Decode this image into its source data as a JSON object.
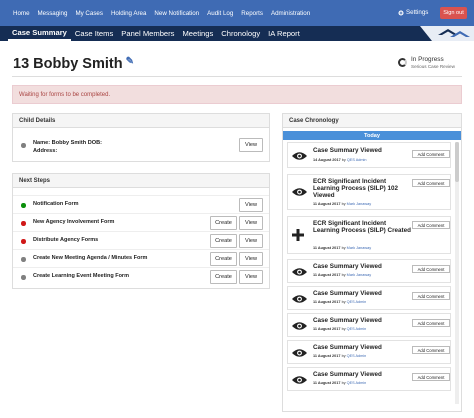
{
  "topnav": {
    "items": [
      "Home",
      "Messaging",
      "My Cases",
      "Holding Area",
      "New Notification",
      "Audit Log",
      "Reports",
      "Administration"
    ],
    "settings": "Settings",
    "signout": "Sign out"
  },
  "subnav": {
    "tabs": [
      "Case Summary",
      "Case Items",
      "Panel Members",
      "Meetings",
      "Chronology",
      "IA Report"
    ],
    "active": "Case Summary"
  },
  "case": {
    "title": "13 Bobby Smith",
    "status_title": "In Progress",
    "status_sub": "Serious Case Review"
  },
  "alert": "Waiting for forms to be completed.",
  "child_details": {
    "heading": "Child Details",
    "name": "Name: Bobby Smith DOB:",
    "address": "Address:",
    "view": "View"
  },
  "next_steps": {
    "heading": "Next Steps",
    "create_label": "Create",
    "view_label": "View",
    "items": [
      {
        "label": "Notification Form",
        "status": "green",
        "create": false
      },
      {
        "label": "New Agency Involvement Form",
        "status": "red",
        "create": true
      },
      {
        "label": "Distribute Agency Forms",
        "status": "red",
        "create": true
      },
      {
        "label": "Create New Meeting Agenda / Minutes Form",
        "status": "gray",
        "create": true
      },
      {
        "label": "Create Learning Event Meeting Form",
        "status": "gray",
        "create": true
      }
    ]
  },
  "chronology": {
    "heading": "Case Chronology",
    "today": "Today",
    "add_comment": "Add Comment",
    "items": [
      {
        "icon": "eye-icon",
        "title": "Case Summary Viewed",
        "date": "14 August 2017",
        "by": "by",
        "who": "QES Admin"
      },
      {
        "icon": "eye-icon",
        "title": "ECR Significant Incident Learning Process (SILP) 102 Viewed",
        "date": "11 August 2017",
        "by": "by",
        "who": "Mark Janaway"
      },
      {
        "icon": "plus-icon",
        "title": "ECR Significant Incident Learning Process (SILP) Created",
        "date": "11 August 2017",
        "by": "by",
        "who": "Mark Janaway"
      },
      {
        "icon": "eye-icon",
        "title": "Case Summary Viewed",
        "date": "11 August 2017",
        "by": "by",
        "who": "Mark Janaway"
      },
      {
        "icon": "eye-icon",
        "title": "Case Summary Viewed",
        "date": "11 August 2017",
        "by": "by",
        "who": "QES Admin"
      },
      {
        "icon": "eye-icon",
        "title": "Case Summary Viewed",
        "date": "11 August 2017",
        "by": "by",
        "who": "QES Admin"
      },
      {
        "icon": "eye-icon",
        "title": "Case Summary Viewed",
        "date": "11 August 2017",
        "by": "by",
        "who": "QES Admin"
      },
      {
        "icon": "eye-icon",
        "title": "Case Summary Viewed",
        "date": "11 August 2017",
        "by": "by",
        "who": "QES Admin"
      }
    ]
  }
}
